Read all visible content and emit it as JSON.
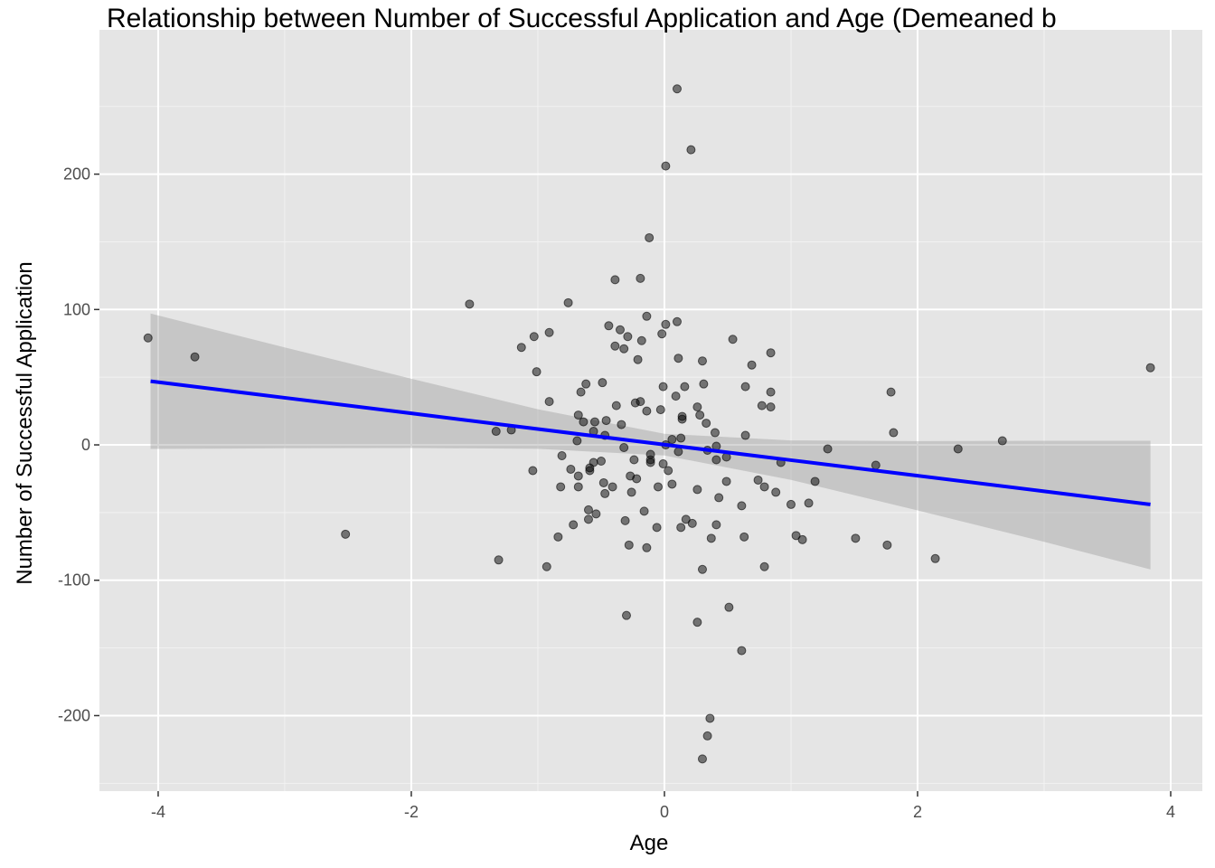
{
  "chart_data": {
    "type": "scatter",
    "title": "Relationship between Number of Successful Application and Age (Demeaned b",
    "x_label": "Age",
    "y_label": "Number of Successful Application",
    "xlim": [
      -4.464,
      4.25
    ],
    "ylim": [
      -255.8,
      306.6
    ],
    "xticks": [
      -4,
      -2,
      0,
      2,
      4
    ],
    "yticks": [
      -200,
      -100,
      0,
      100,
      200
    ],
    "grid": true,
    "point_color": "#000000",
    "x": [
      -4.08,
      -3.71,
      -2.52,
      -1.54,
      -1.33,
      -1.31,
      -1.21,
      -1.13,
      -1.04,
      -1.03,
      -1.01,
      -0.93,
      -0.91,
      -0.91,
      -0.84,
      -0.82,
      -0.81,
      -0.76,
      -0.74,
      -0.72,
      -0.69,
      -0.68,
      -0.68,
      -0.68,
      -0.66,
      -0.64,
      -0.62,
      -0.6,
      -0.6,
      -0.59,
      -0.59,
      -0.56,
      -0.56,
      -0.55,
      -0.54,
      -0.5,
      -0.49,
      -0.48,
      -0.47,
      -0.46,
      -0.47,
      -0.44,
      -0.41,
      -0.39,
      -0.39,
      -0.38,
      -0.35,
      -0.34,
      -0.32,
      -0.32,
      -0.31,
      -0.3,
      -0.29,
      -0.28,
      -0.27,
      -0.26,
      -0.24,
      -0.23,
      -0.22,
      -0.21,
      -0.19,
      -0.19,
      -0.18,
      -0.16,
      -0.14,
      -0.14,
      -0.14,
      -0.12,
      -0.11,
      -0.11,
      -0.11,
      -0.06,
      -0.05,
      -0.03,
      -0.02,
      -0.01,
      -0.01,
      0.01,
      0.01,
      0.01,
      0.03,
      0.06,
      0.06,
      0.09,
      0.1,
      0.1,
      0.11,
      0.11,
      0.13,
      0.13,
      0.14,
      0.14,
      0.16,
      0.17,
      0.21,
      0.22,
      0.26,
      0.26,
      0.26,
      0.28,
      0.3,
      0.3,
      0.3,
      0.31,
      0.33,
      0.34,
      0.34,
      0.36,
      0.37,
      0.4,
      0.41,
      0.41,
      0.41,
      0.43,
      0.49,
      0.49,
      0.51,
      0.54,
      0.61,
      0.61,
      0.63,
      0.64,
      0.64,
      0.69,
      0.74,
      0.77,
      0.79,
      0.79,
      0.84,
      0.84,
      0.84,
      0.88,
      0.92,
      1.0,
      1.04,
      1.09,
      1.14,
      1.19,
      1.29,
      1.51,
      1.67,
      1.76,
      1.79,
      1.81,
      2.14,
      2.32,
      2.67,
      3.84
    ],
    "y": [
      79,
      65,
      -66,
      104,
      10,
      -85,
      11,
      72,
      -19,
      80,
      54,
      -90,
      83,
      32,
      -68,
      -31,
      -8,
      105,
      -18,
      -59,
      3,
      22,
      -23,
      -31,
      39,
      17,
      45,
      -48,
      -55,
      -19,
      -17,
      -13,
      10,
      17,
      -51,
      -12,
      46,
      -28,
      -36,
      18,
      7,
      88,
      -31,
      73,
      122,
      29,
      85,
      15,
      71,
      -2,
      -56,
      -126,
      80,
      -74,
      -23,
      -35,
      -11,
      31,
      -25,
      63,
      123,
      32,
      77,
      -49,
      95,
      25,
      -76,
      153,
      -11,
      -13,
      -7,
      -61,
      -31,
      26,
      82,
      43,
      -14,
      0,
      89,
      206,
      -19,
      4,
      -29,
      36,
      91,
      263,
      -5,
      64,
      -61,
      5,
      19,
      21,
      43,
      -55,
      218,
      -58,
      -131,
      -33,
      28,
      22,
      62,
      -92,
      -232,
      45,
      16,
      -215,
      -4,
      -202,
      -69,
      9,
      -59,
      -1,
      -11,
      -39,
      -27,
      -9,
      -120,
      78,
      -45,
      -152,
      -68,
      43,
      7,
      59,
      -26,
      29,
      -90,
      -31,
      68,
      39,
      28,
      -35,
      -13,
      -44,
      -67,
      -70,
      -43,
      -27,
      -3,
      -69,
      -15,
      -74,
      39,
      9,
      -84,
      -3,
      3,
      57
    ],
    "fit": {
      "color": "#0000ff",
      "band_color": "#999999",
      "x": [
        -4.06,
        -3,
        -2,
        -1,
        0,
        1,
        2,
        3,
        3.84
      ],
      "y": [
        47,
        34.8,
        23.3,
        11.7,
        0.2,
        -11.3,
        -22.8,
        -34.3,
        -44
      ],
      "lower": [
        -3,
        -2.5,
        -2.3,
        -2.9,
        -7.8,
        -25.9,
        -48.4,
        -71.6,
        -92
      ],
      "upper": [
        97,
        72,
        48.9,
        26.3,
        8.2,
        3.3,
        2.8,
        3,
        3
      ]
    }
  }
}
